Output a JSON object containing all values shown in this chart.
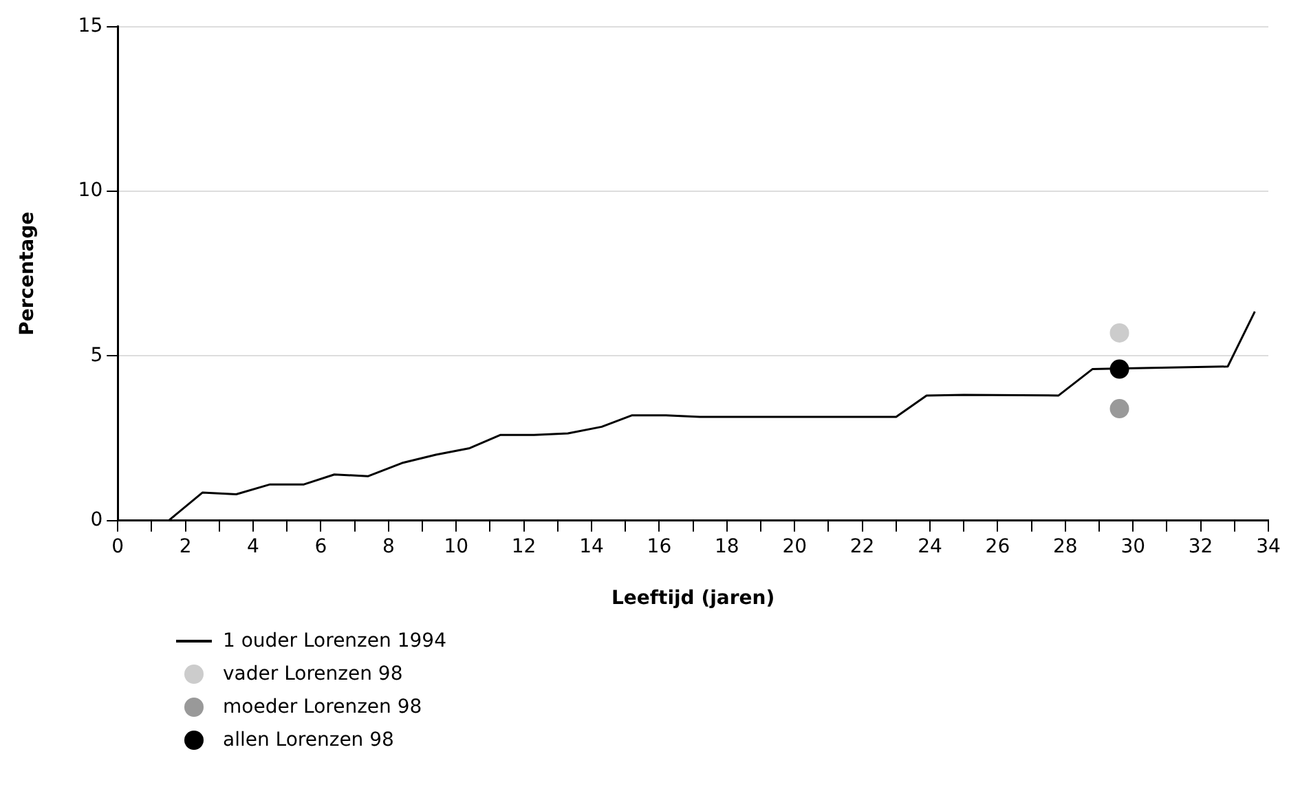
{
  "chart_data": {
    "type": "line",
    "xlabel": "Leeftijd (jaren)",
    "ylabel": "Percentage",
    "xlim": [
      0,
      34
    ],
    "xticks": [
      0,
      {
        "value": 1,
        "label": null
      },
      2,
      {
        "value": 3,
        "label": null
      },
      4,
      {
        "value": 5,
        "label": null
      },
      6,
      {
        "value": 7,
        "label": null
      },
      8,
      {
        "value": 9,
        "label": null
      },
      10,
      {
        "value": 11,
        "label": null
      },
      12,
      {
        "value": 13,
        "label": null
      },
      14,
      {
        "value": 15,
        "label": null
      },
      16,
      {
        "value": 17,
        "label": null
      },
      18,
      {
        "value": 19,
        "label": null
      },
      20,
      {
        "value": 21,
        "label": null
      },
      22,
      {
        "value": 23,
        "label": null
      },
      24,
      {
        "value": 25,
        "label": null
      },
      26,
      {
        "value": 27,
        "label": null
      },
      28,
      {
        "value": 29,
        "label": null
      },
      30,
      {
        "value": 31,
        "label": null
      },
      32,
      {
        "value": 33,
        "label": null
      },
      34
    ],
    "ylim": [
      0,
      15
    ],
    "yticks": [
      0,
      5,
      10,
      15
    ],
    "grid": "y",
    "legend": "bottom",
    "series": [
      {
        "name": "1 ouder Lorenzen 1994",
        "type": "line",
        "color": "#000000",
        "marker": "none",
        "x": [
          0,
          1.5,
          2.5,
          3.5,
          4.5,
          5.5,
          6.4,
          7.4,
          8.4,
          9.4,
          10.4,
          11.3,
          12.3,
          13.3,
          14.3,
          15.2,
          16.2,
          17.2,
          23.0,
          23.9,
          25.0,
          27.8,
          28.8,
          29.5,
          32.8,
          33.6
        ],
        "values": [
          0,
          0,
          0.85,
          0.8,
          1.1,
          1.1,
          1.4,
          1.35,
          1.75,
          2.0,
          2.2,
          2.6,
          2.6,
          2.65,
          2.85,
          3.2,
          3.2,
          3.15,
          3.15,
          3.8,
          3.82,
          3.8,
          4.6,
          4.62,
          4.68,
          6.35
        ]
      },
      {
        "name": "vader Lorenzen 98",
        "type": "scatter",
        "color": "#cccccc",
        "marker": "circle",
        "x": [
          29.6
        ],
        "values": [
          5.7
        ]
      },
      {
        "name": "moeder Lorenzen 98",
        "type": "scatter",
        "color": "#999999",
        "marker": "circle",
        "x": [
          29.6
        ],
        "values": [
          3.4
        ]
      },
      {
        "name": "allen Lorenzen 98",
        "type": "scatter",
        "color": "#000000",
        "marker": "circle",
        "x": [
          29.6
        ],
        "values": [
          4.6
        ]
      }
    ]
  }
}
